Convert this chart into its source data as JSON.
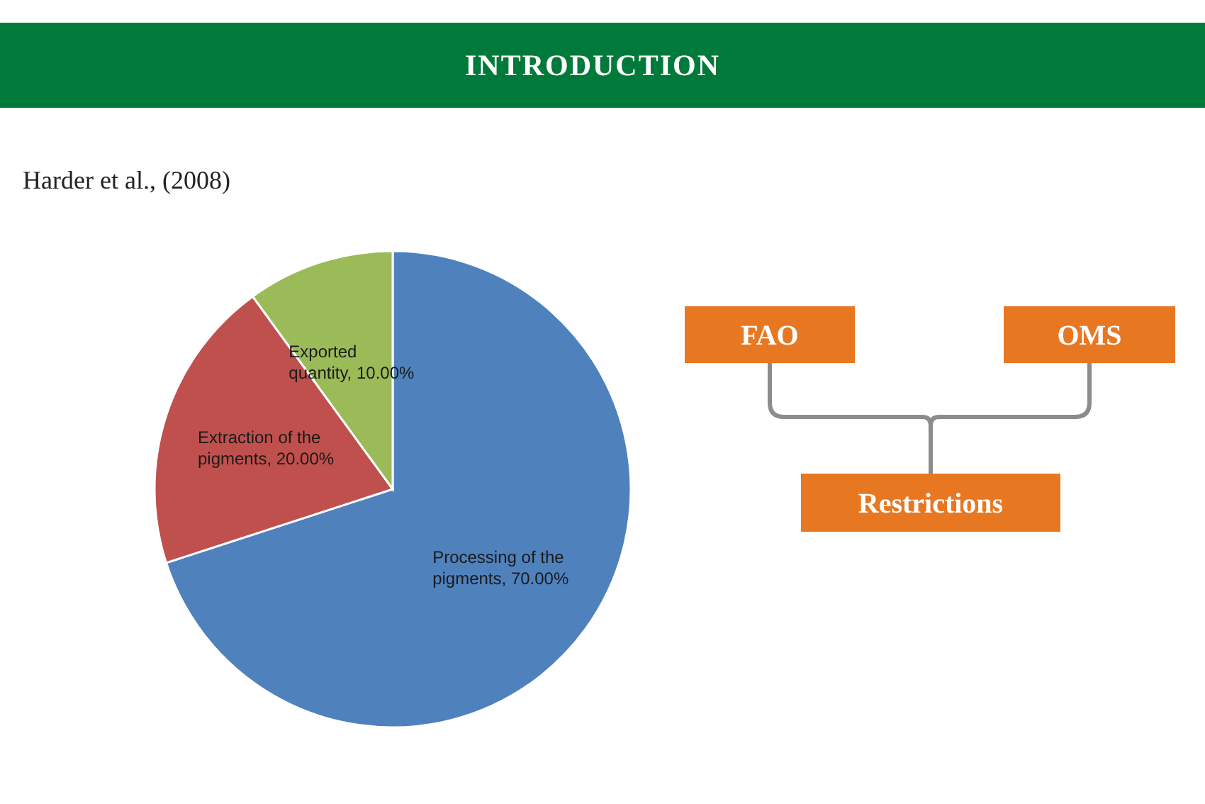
{
  "chart_data": {
    "type": "pie",
    "title": "INTRODUCTION",
    "subtitle": "Harder et al., (2008)",
    "categories": [
      "Processing of the pigments",
      "Extraction of the pigments",
      "Exported quantity"
    ],
    "values": [
      70,
      20,
      10
    ],
    "value_labels": [
      "70.00%",
      "20.00%",
      "10.00%"
    ],
    "colors": [
      "#4f81bd",
      "#c0504d",
      "#9bbb59"
    ],
    "annotations": [
      "FAO",
      "OMS",
      "Restrictions"
    ]
  }
}
